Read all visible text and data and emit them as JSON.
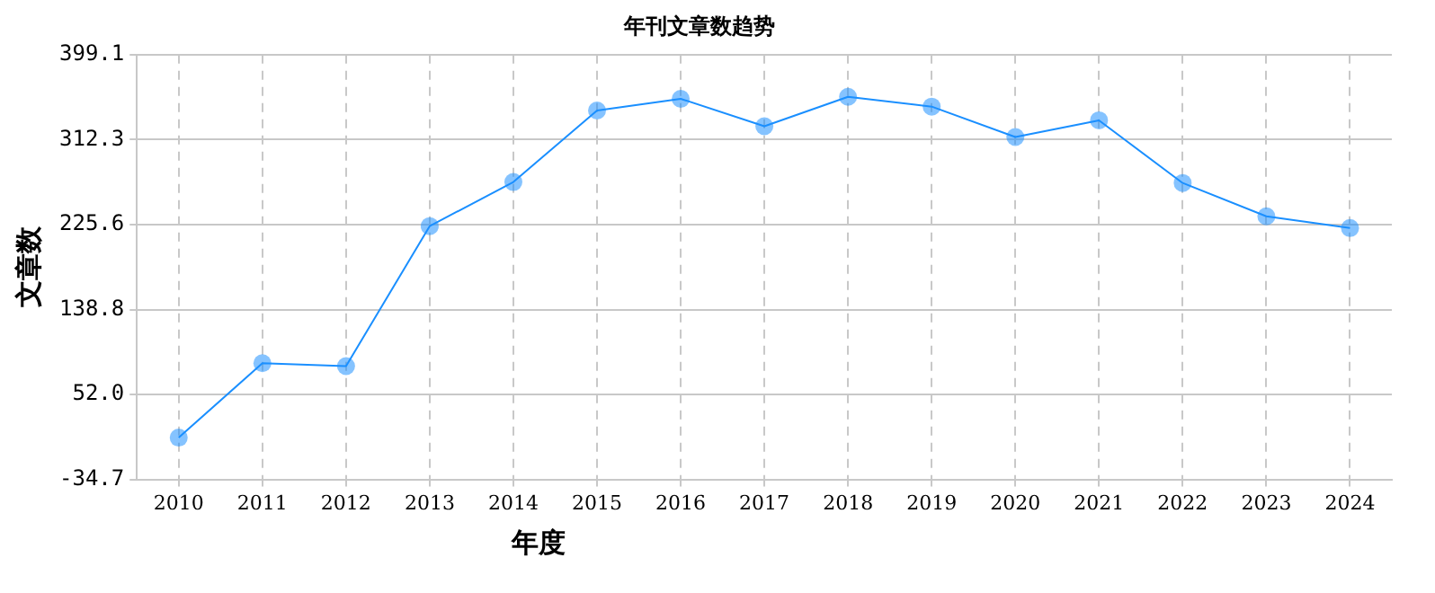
{
  "chart_data": {
    "type": "line",
    "title": "年刊文章数趋势",
    "xlabel": "年度",
    "ylabel": "文章数",
    "categories": [
      "2010",
      "2011",
      "2012",
      "2013",
      "2014",
      "2015",
      "2016",
      "2017",
      "2018",
      "2019",
      "2020",
      "2021",
      "2022",
      "2023",
      "2024"
    ],
    "series": [
      {
        "color": "#1a8fff",
        "values": [
          8,
          84,
          81,
          224,
          269,
          342,
          354,
          326,
          356,
          346,
          315,
          332,
          268,
          234,
          222
        ]
      }
    ],
    "ylim": [
      -34.7,
      399.1
    ],
    "yticks": [
      {
        "value": -34.7,
        "label": "-34.7"
      },
      {
        "value": 52,
        "label": "52.0"
      },
      138.8,
      225.6,
      312.3,
      399.1
    ],
    "grid": true,
    "legend": false,
    "marker": "circle",
    "line_style": "solid"
  }
}
